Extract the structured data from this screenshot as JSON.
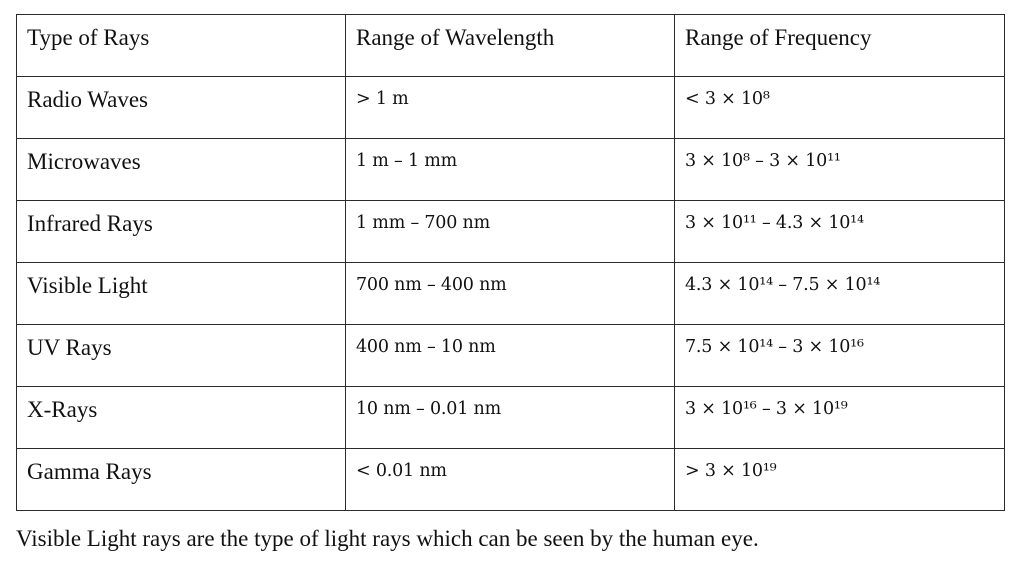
{
  "table": {
    "headers": [
      "Type of Rays",
      "Range of Wavelength",
      "Range of Frequency"
    ],
    "rows": [
      {
        "type": "Radio Waves",
        "wavelength": "> 1 m",
        "frequency": "< 3 × 10⁸"
      },
      {
        "type": "Microwaves",
        "wavelength": "1 m – 1 mm",
        "frequency": "3 × 10⁸ – 3 × 10¹¹"
      },
      {
        "type": "Infrared Rays",
        "wavelength": "1 mm – 700 nm",
        "frequency": "3 × 10¹¹ – 4.3 × 10¹⁴"
      },
      {
        "type": "Visible Light",
        "wavelength": "700 nm – 400 nm",
        "frequency": "4.3 × 10¹⁴ – 7.5 × 10¹⁴"
      },
      {
        "type": "UV Rays",
        "wavelength": "400 nm – 10 nm",
        "frequency": "7.5 × 10¹⁴ – 3 × 10¹⁶"
      },
      {
        "type": "X-Rays",
        "wavelength": "10 nm – 0.01 nm",
        "frequency": "3 × 10¹⁶ – 3 × 10¹⁹"
      },
      {
        "type": "Gamma Rays",
        "wavelength": "< 0.01 nm",
        "frequency": "> 3 × 10¹⁹"
      }
    ]
  },
  "caption": "Visible Light rays are the type of light rays which can be seen by the human eye."
}
